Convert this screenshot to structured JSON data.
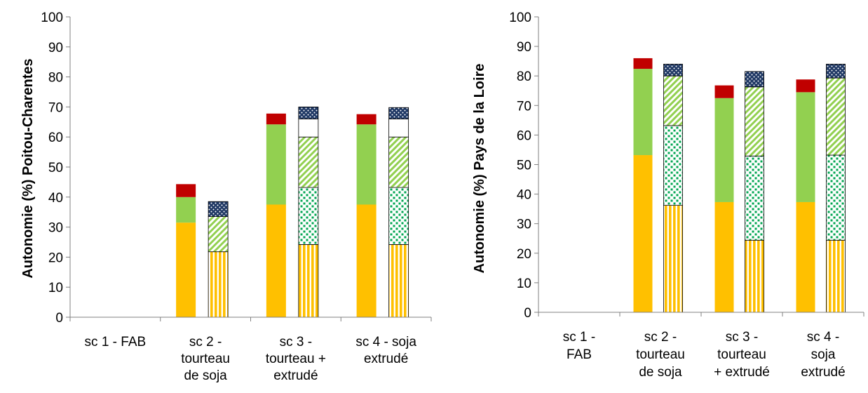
{
  "colors": {
    "orange": "#ffc000",
    "green": "#92d050",
    "red": "#c00000",
    "navy": "#1f3864",
    "axis": "#808080"
  },
  "chart_data": [
    {
      "type": "bar",
      "stacked": true,
      "ylabel": "Autonomie (%)  Poitou-Charentes",
      "ylim": [
        0,
        100
      ],
      "yticks": [
        0,
        10,
        20,
        30,
        40,
        50,
        60,
        70,
        80,
        90,
        100
      ],
      "grid": false,
      "categories": [
        {
          "lines": [
            "sc 1 - FAB"
          ]
        },
        {
          "lines": [
            "sc 2 -",
            "tourteau",
            "de soja"
          ]
        },
        {
          "lines": [
            "sc 3 -",
            "tourteau +",
            "extrudé"
          ]
        },
        {
          "lines": [
            "sc 4 - soja",
            "extrudé"
          ]
        }
      ],
      "bars": [
        {
          "category": 0,
          "group": 0,
          "segments": []
        },
        {
          "category": 0,
          "group": 1,
          "segments": []
        },
        {
          "category": 1,
          "group": 0,
          "segments": [
            {
              "fill": "orange",
              "value": 31.5
            },
            {
              "fill": "green",
              "value": 8.5
            },
            {
              "fill": "red",
              "value": 4.3
            }
          ]
        },
        {
          "category": 1,
          "group": 1,
          "segments": [
            {
              "fill": "orange-stripes",
              "value": 21.8
            },
            {
              "fill": "green-dots",
              "value": 0
            },
            {
              "fill": "green-hatch",
              "value": 11.7
            },
            {
              "fill": "white",
              "value": 0
            },
            {
              "fill": "navy-dots",
              "value": 5
            }
          ]
        },
        {
          "category": 2,
          "group": 0,
          "segments": [
            {
              "fill": "orange",
              "value": 37.5
            },
            {
              "fill": "green",
              "value": 26.7
            },
            {
              "fill": "red",
              "value": 3.6
            }
          ]
        },
        {
          "category": 2,
          "group": 1,
          "segments": [
            {
              "fill": "orange-stripes",
              "value": 24.2
            },
            {
              "fill": "green-dots",
              "value": 19
            },
            {
              "fill": "green-hatch",
              "value": 16.8
            },
            {
              "fill": "white",
              "value": 6
            },
            {
              "fill": "navy-dots",
              "value": 4
            }
          ]
        },
        {
          "category": 3,
          "group": 0,
          "segments": [
            {
              "fill": "orange",
              "value": 37.5
            },
            {
              "fill": "green",
              "value": 26.7
            },
            {
              "fill": "red",
              "value": 3.4
            }
          ]
        },
        {
          "category": 3,
          "group": 1,
          "segments": [
            {
              "fill": "orange-stripes",
              "value": 24.2
            },
            {
              "fill": "green-dots",
              "value": 19
            },
            {
              "fill": "green-hatch",
              "value": 16.8
            },
            {
              "fill": "white",
              "value": 6
            },
            {
              "fill": "navy-dots",
              "value": 3.8
            }
          ]
        }
      ]
    },
    {
      "type": "bar",
      "stacked": true,
      "ylabel": "Autonomie (%)  Pays de la Loire",
      "ylim": [
        0,
        100
      ],
      "yticks": [
        0,
        10,
        20,
        30,
        40,
        50,
        60,
        70,
        80,
        90,
        100
      ],
      "grid": false,
      "categories": [
        {
          "lines": [
            "sc 1 -",
            "FAB"
          ]
        },
        {
          "lines": [
            "sc 2 -",
            "tourteau",
            "de soja"
          ]
        },
        {
          "lines": [
            "sc 3 -",
            "tourteau",
            "+ extrudé"
          ]
        },
        {
          "lines": [
            "sc 4 -",
            "soja",
            "extrudé"
          ]
        }
      ],
      "bars": [
        {
          "category": 0,
          "group": 0,
          "segments": []
        },
        {
          "category": 0,
          "group": 1,
          "segments": []
        },
        {
          "category": 1,
          "group": 0,
          "segments": [
            {
              "fill": "orange",
              "value": 53.2
            },
            {
              "fill": "green",
              "value": 29.2
            },
            {
              "fill": "red",
              "value": 3.6
            }
          ]
        },
        {
          "category": 1,
          "group": 1,
          "segments": [
            {
              "fill": "orange-stripes",
              "value": 36.2
            },
            {
              "fill": "green-dots",
              "value": 27
            },
            {
              "fill": "green-hatch",
              "value": 16.8
            },
            {
              "fill": "white",
              "value": 0
            },
            {
              "fill": "navy-dots",
              "value": 4
            }
          ]
        },
        {
          "category": 2,
          "group": 0,
          "segments": [
            {
              "fill": "orange",
              "value": 37.3
            },
            {
              "fill": "green",
              "value": 35.2
            },
            {
              "fill": "red",
              "value": 4.3
            }
          ]
        },
        {
          "category": 2,
          "group": 1,
          "segments": [
            {
              "fill": "orange-stripes",
              "value": 24.4
            },
            {
              "fill": "green-dots",
              "value": 28.5
            },
            {
              "fill": "green-hatch",
              "value": 23.4
            },
            {
              "fill": "white",
              "value": 0
            },
            {
              "fill": "navy-dots",
              "value": 5.2
            }
          ]
        },
        {
          "category": 3,
          "group": 0,
          "segments": [
            {
              "fill": "orange",
              "value": 37.3
            },
            {
              "fill": "green",
              "value": 37.2
            },
            {
              "fill": "red",
              "value": 4.3
            }
          ]
        },
        {
          "category": 3,
          "group": 1,
          "segments": [
            {
              "fill": "orange-stripes",
              "value": 24.4
            },
            {
              "fill": "green-dots",
              "value": 28.8
            },
            {
              "fill": "green-hatch",
              "value": 26.1
            },
            {
              "fill": "white",
              "value": 0
            },
            {
              "fill": "navy-dots",
              "value": 4.7
            }
          ]
        }
      ]
    }
  ]
}
